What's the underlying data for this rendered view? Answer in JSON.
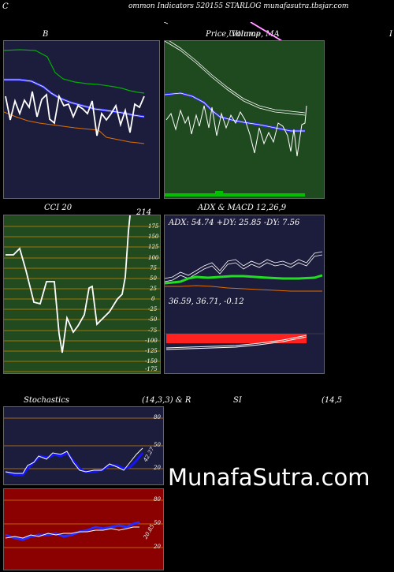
{
  "header": {
    "left_letter": "C",
    "title": "ommon  Indicators 520155 STARLOG munafasutra.tbsjar.com"
  },
  "panels": {
    "bollinger": {
      "label": "B"
    },
    "price": {
      "label": "Price,  Volume,  MA",
      "overlap": "Ultimop"
    },
    "right_letter": "I",
    "cci": {
      "label": "CCI 20",
      "value_label": "214",
      "ticks": [
        "175",
        "150",
        "125",
        "100",
        "75",
        "50",
        "25",
        "0",
        "-25",
        "-50",
        "-75",
        "-100",
        "-125",
        "-150",
        "-175"
      ]
    },
    "adx_macd": {
      "label": "ADX  & MACD 12,26,9",
      "adx_text": "ADX: 54.74  +DY: 25.85 -DY: 7.56",
      "macd_text": "36.59,  36.71,  -0.12"
    },
    "stochastics": {
      "label_left": "Stochastics",
      "label_mid": "(14,3,3) & R",
      "label_si": "SI",
      "label_right": "(14,5",
      "ticks_top": [
        "80",
        "50",
        "20"
      ],
      "value_top": "42.27",
      "ticks_bottom": [
        "80",
        "50",
        "20"
      ],
      "value_bottom": "20.85"
    }
  },
  "watermark": "MunafaSutra.com",
  "colors": {
    "navy": "#1c1c3c",
    "green_panel": "#1f4a1f",
    "cci_bg": "#214a1e",
    "rsi_bg": "#8b0000",
    "blue_line": "#1414ff",
    "orange_line": "#e07000",
    "green_line": "#00b000",
    "bright_green": "#22dd22",
    "magenta": "#ff33ff"
  }
}
